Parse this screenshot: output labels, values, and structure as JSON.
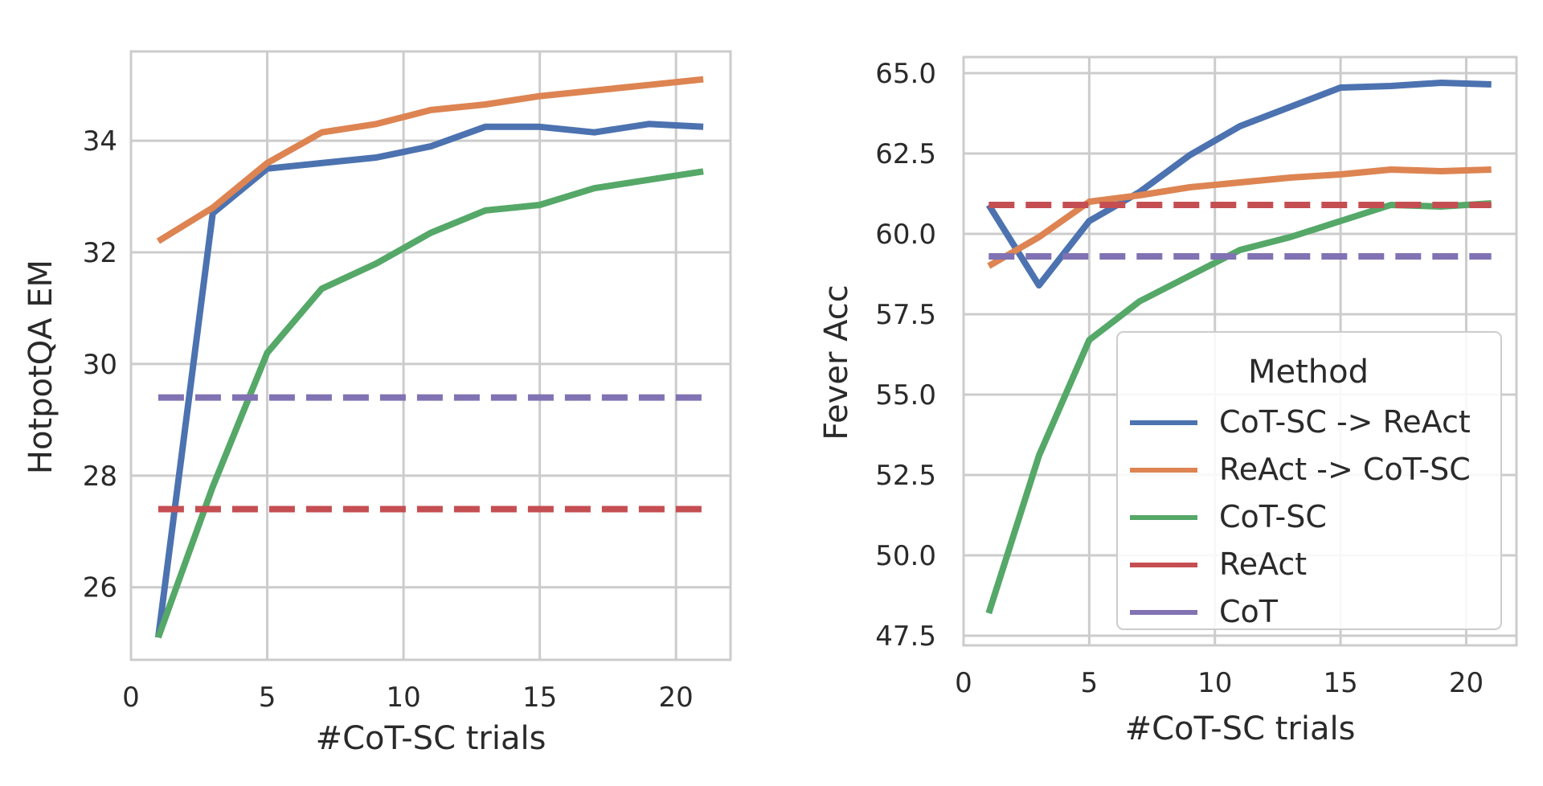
{
  "colors": {
    "CoT-SC -> ReAct": "#4c72b0",
    "ReAct -> CoT-SC": "#dd8452",
    "CoT-SC": "#55a868",
    "ReAct": "#c44e52",
    "CoT": "#8172b3",
    "grid": "#cccccc",
    "frame": "#cccccc"
  },
  "chart_data": [
    {
      "type": "line",
      "xlabel": "#CoT-SC trials",
      "ylabel": "HotpotQA EM",
      "xlim": [
        0,
        22
      ],
      "ylim": [
        24.7,
        35.6
      ],
      "xticks": [
        0,
        5,
        10,
        15,
        20
      ],
      "yticks": [
        26,
        28,
        30,
        32,
        34
      ],
      "ytick_labels": [
        "26",
        "28",
        "30",
        "32",
        "34"
      ],
      "grid": true,
      "series": [
        {
          "name": "CoT-SC -> ReAct",
          "style": "solid",
          "x": [
            1,
            3,
            5,
            7,
            9,
            11,
            13,
            15,
            17,
            19,
            21
          ],
          "y": [
            25.1,
            32.7,
            33.5,
            33.6,
            33.7,
            33.9,
            34.25,
            34.25,
            34.15,
            34.3,
            34.25
          ]
        },
        {
          "name": "ReAct -> CoT-SC",
          "style": "solid",
          "x": [
            1,
            3,
            5,
            7,
            9,
            11,
            13,
            15,
            17,
            19,
            21
          ],
          "y": [
            32.2,
            32.8,
            33.6,
            34.15,
            34.3,
            34.55,
            34.65,
            34.8,
            34.9,
            35.0,
            35.1
          ]
        },
        {
          "name": "CoT-SC",
          "style": "solid",
          "x": [
            1,
            3,
            5,
            7,
            9,
            11,
            13,
            15,
            17,
            19,
            21
          ],
          "y": [
            25.1,
            27.8,
            30.2,
            31.35,
            31.8,
            32.35,
            32.75,
            32.85,
            33.15,
            33.3,
            33.45
          ]
        },
        {
          "name": "ReAct",
          "style": "dashed",
          "x": [
            1,
            21
          ],
          "y": [
            27.4,
            27.4
          ]
        },
        {
          "name": "CoT",
          "style": "dashed",
          "x": [
            1,
            21
          ],
          "y": [
            29.4,
            29.4
          ]
        }
      ]
    },
    {
      "type": "line",
      "xlabel": "#CoT-SC trials",
      "ylabel": "Fever Acc",
      "xlim": [
        0,
        22
      ],
      "ylim": [
        47.2,
        65.5
      ],
      "xticks": [
        0,
        5,
        10,
        15,
        20
      ],
      "yticks": [
        47.5,
        50.0,
        52.5,
        55.0,
        57.5,
        60.0,
        62.5,
        65.0
      ],
      "ytick_labels": [
        "47.5",
        "50.0",
        "52.5",
        "55.0",
        "57.5",
        "60.0",
        "62.5",
        "65.0"
      ],
      "grid": true,
      "legend": {
        "title": "Method",
        "placement": "lower-right"
      },
      "series": [
        {
          "name": "CoT-SC -> ReAct",
          "style": "solid",
          "x": [
            1,
            3,
            5,
            7,
            9,
            11,
            13,
            15,
            17,
            19,
            21
          ],
          "y": [
            60.9,
            58.4,
            60.4,
            61.3,
            62.45,
            63.35,
            63.95,
            64.55,
            64.6,
            64.7,
            64.65
          ]
        },
        {
          "name": "ReAct -> CoT-SC",
          "style": "solid",
          "x": [
            1,
            3,
            5,
            7,
            9,
            11,
            13,
            15,
            17,
            19,
            21
          ],
          "y": [
            59.0,
            59.9,
            61.0,
            61.2,
            61.45,
            61.6,
            61.75,
            61.85,
            62.0,
            61.95,
            62.0
          ]
        },
        {
          "name": "CoT-SC",
          "style": "solid",
          "x": [
            1,
            3,
            5,
            7,
            9,
            11,
            13,
            15,
            17,
            19,
            21
          ],
          "y": [
            48.2,
            53.1,
            56.7,
            57.9,
            58.7,
            59.5,
            59.9,
            60.4,
            60.9,
            60.85,
            60.95
          ]
        },
        {
          "name": "ReAct",
          "style": "dashed",
          "x": [
            1,
            21
          ],
          "y": [
            60.9,
            60.9
          ]
        },
        {
          "name": "CoT",
          "style": "dashed",
          "x": [
            1,
            21
          ],
          "y": [
            59.3,
            59.3
          ]
        }
      ]
    }
  ]
}
